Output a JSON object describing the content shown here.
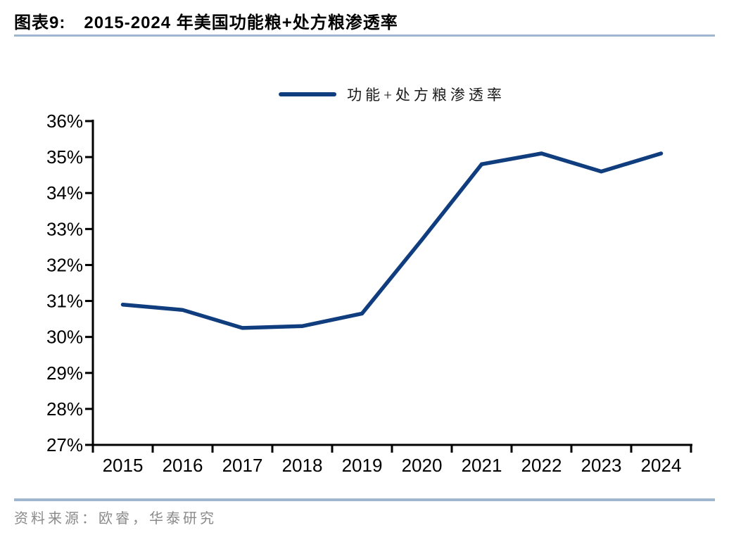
{
  "header": {
    "figure_label": "图表9:",
    "title": "2015-2024 年美国功能粮+处方粮渗透率"
  },
  "legend": {
    "label": "功能+处方粮渗透率"
  },
  "footer": {
    "source_text": "资料来源：欧睿，华泰研究"
  },
  "colors": {
    "series_line": "#0f3d7e",
    "divider_rule": "#9eb6ce",
    "axis": "#000000",
    "axis_text": "#000000",
    "footer_text": "#8a8a8a"
  },
  "chart_data": {
    "type": "line",
    "title": "2015-2024 年美国功能粮+处方粮渗透率",
    "categories": [
      "2015",
      "2016",
      "2017",
      "2018",
      "2019",
      "2020",
      "2021",
      "2022",
      "2023",
      "2024"
    ],
    "series": [
      {
        "name": "功能+处方粮渗透率",
        "values": [
          30.9,
          30.75,
          30.25,
          30.3,
          30.65,
          32.7,
          34.8,
          35.1,
          34.6,
          35.1
        ]
      }
    ],
    "xlabel": "",
    "ylabel": "",
    "ylim": [
      27,
      36
    ],
    "y_tick_step": 1,
    "y_tick_suffix": "%",
    "y_tick_labels": [
      "27%",
      "28%",
      "29%",
      "30%",
      "31%",
      "32%",
      "33%",
      "34%",
      "35%",
      "36%"
    ],
    "grid": false,
    "legend_position": "top-center"
  }
}
